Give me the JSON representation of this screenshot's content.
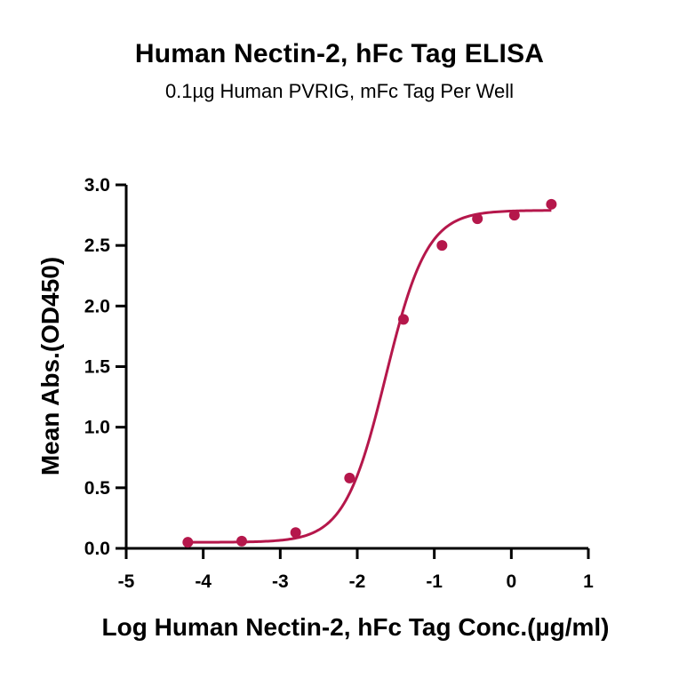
{
  "chart_data": {
    "type": "scatter",
    "title": "Human Nectin-2, hFc Tag ELISA",
    "subtitle": "0.1µg Human PVRIG, mFc Tag Per Well",
    "xlabel": "Log Human Nectin-2, hFc Tag Conc.(µg/ml)",
    "ylabel": "Mean Abs.(OD450)",
    "xlim": [
      -5,
      1
    ],
    "ylim": [
      0,
      3
    ],
    "x_ticks": [
      -5,
      -4,
      -3,
      -2,
      -1,
      0,
      1
    ],
    "x_tick_labels": [
      "-5",
      "-4",
      "-3",
      "-2",
      "-1",
      "0",
      "1"
    ],
    "y_ticks": [
      0,
      0.5,
      1,
      1.5,
      2,
      2.5,
      3
    ],
    "y_tick_labels": [
      "0.0",
      "0.5",
      "1.0",
      "1.5",
      "2.0",
      "2.5",
      "3.0"
    ],
    "grid": false,
    "color": "#b5174b",
    "series": [
      {
        "x": [
          -4.2,
          -3.5,
          -2.8,
          -2.1,
          -1.4,
          -0.9,
          -0.44,
          0.04,
          0.52
        ],
        "y": [
          0.05,
          0.06,
          0.13,
          0.58,
          1.89,
          2.5,
          2.72,
          2.75,
          2.84
        ]
      }
    ],
    "fit": {
      "model": "4PL",
      "bottom": 0.05,
      "top": 2.79,
      "log_ec50": -1.63,
      "hill_slope": 1.62,
      "x_range": [
        -4.2,
        0.52
      ]
    }
  }
}
